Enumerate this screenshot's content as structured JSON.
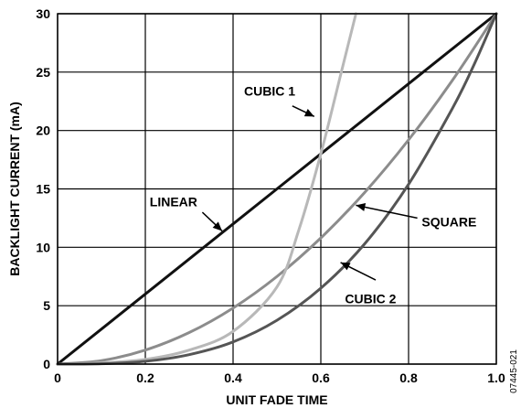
{
  "chart_data": {
    "type": "line",
    "xlabel": "UNIT FADE TIME",
    "ylabel": "BACKLIGHT CURRENT (mA)",
    "xlim": [
      0,
      1.0
    ],
    "ylim": [
      0,
      30
    ],
    "x_ticks": [
      "0",
      "0.2",
      "0.4",
      "0.6",
      "0.8",
      "1.0"
    ],
    "y_ticks": [
      "0",
      "5",
      "10",
      "15",
      "20",
      "25",
      "30"
    ],
    "grid": true,
    "figure_id": "07445-021",
    "series": [
      {
        "name": "LINEAR",
        "color": "#111111",
        "x": [
          0,
          0.2,
          0.4,
          0.6,
          0.8,
          1.0
        ],
        "y": [
          0,
          6,
          12,
          18,
          24,
          30
        ]
      },
      {
        "name": "SQUARE",
        "color": "#8c8c8c",
        "x": [
          0,
          0.1,
          0.2,
          0.3,
          0.4,
          0.5,
          0.6,
          0.7,
          0.8,
          0.9,
          1.0
        ],
        "y": [
          0,
          0.3,
          1.2,
          2.7,
          4.8,
          7.5,
          10.8,
          14.7,
          19.2,
          24.3,
          30
        ]
      },
      {
        "name": "CUBIC 1",
        "color": "#b8b8b8",
        "x": [
          0,
          0.1,
          0.2,
          0.3,
          0.4,
          0.5,
          0.55,
          0.6,
          0.65,
          0.68
        ],
        "y": [
          0,
          0.1,
          0.4,
          1.2,
          2.8,
          6.6,
          11.5,
          18.0,
          25.5,
          30
        ]
      },
      {
        "name": "CUBIC 2",
        "color": "#555555",
        "x": [
          0,
          0.1,
          0.2,
          0.3,
          0.4,
          0.5,
          0.6,
          0.7,
          0.8,
          0.9,
          0.95,
          1.0
        ],
        "y": [
          0,
          0.03,
          0.24,
          0.81,
          1.9,
          3.75,
          6.5,
          10.3,
          15.4,
          21.9,
          25.7,
          30
        ]
      }
    ],
    "annotations": [
      {
        "text": "CUBIC 1",
        "series": "CUBIC 1"
      },
      {
        "text": "LINEAR",
        "series": "LINEAR"
      },
      {
        "text": "SQUARE",
        "series": "SQUARE"
      },
      {
        "text": "CUBIC 2",
        "series": "CUBIC 2"
      }
    ]
  }
}
